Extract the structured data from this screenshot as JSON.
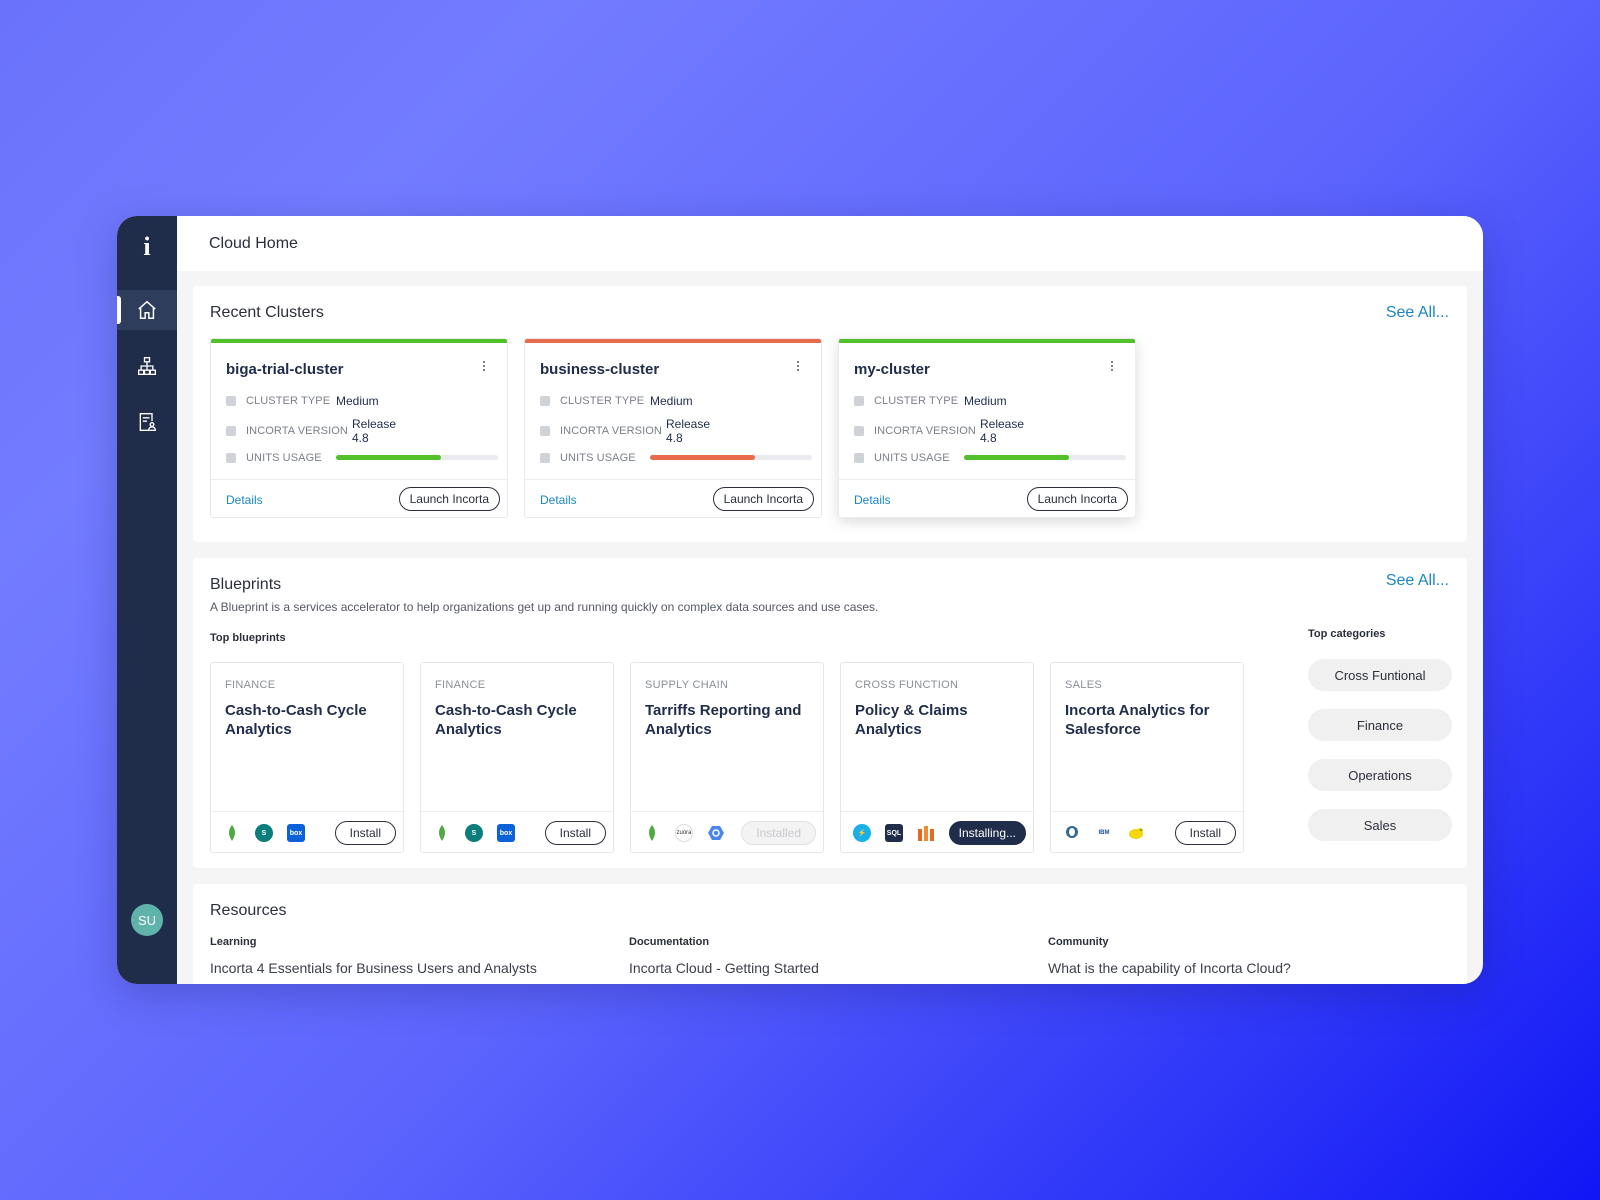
{
  "page": {
    "title": "Cloud Home"
  },
  "sidebar": {
    "logo": "i",
    "nav": [
      {
        "name": "home",
        "icon": "home-icon",
        "active": true
      },
      {
        "name": "hierarchy",
        "icon": "sitemap-icon",
        "active": false
      },
      {
        "name": "report",
        "icon": "report-user-icon",
        "active": false
      }
    ],
    "avatar": "SU"
  },
  "recent_clusters": {
    "title": "Recent Clusters",
    "see_all": "See All...",
    "clusters": [
      {
        "name": "biga-trial-cluster",
        "status_color": "#52c028",
        "type_label": "CLUSTER TYPE",
        "type": "Medium",
        "version_label": "INCORTA VERSION",
        "version": "Release 4.8",
        "usage_label": "UNITS USAGE",
        "usage": 0.65,
        "details": "Details",
        "launch": "Launch Incorta"
      },
      {
        "name": "business-cluster",
        "status_color": "#ea6b4b",
        "type_label": "CLUSTER TYPE",
        "type": "Medium",
        "version_label": "INCORTA VERSION",
        "version": "Release 4.8",
        "usage_label": "UNITS USAGE",
        "usage": 0.65,
        "details": "Details",
        "launch": "Launch Incorta"
      },
      {
        "name": "my-cluster",
        "status_color": "#52c028",
        "type_label": "CLUSTER TYPE",
        "type": "Medium",
        "version_label": "INCORTA VERSION",
        "version": "Release 4.8",
        "usage_label": "UNITS USAGE",
        "usage": 0.65,
        "details": "Details",
        "launch": "Launch Incorta"
      }
    ]
  },
  "blueprints": {
    "title": "Blueprints",
    "see_all": "See All...",
    "description": "A Blueprint is a services accelerator to help organizations get up and running quickly on complex data sources and use cases.",
    "top_label": "Top blueprints",
    "items": [
      {
        "category": "FINANCE",
        "title": "Cash-to-Cash Cycle Analytics",
        "icons": [
          "mongodb-icon",
          "sharepoint-icon",
          "box-icon"
        ],
        "button": "Install",
        "state": "install"
      },
      {
        "category": "FINANCE",
        "title": "Cash-to-Cash Cycle Analytics",
        "icons": [
          "mongodb-icon",
          "sharepoint-icon",
          "box-icon"
        ],
        "button": "Install",
        "state": "install"
      },
      {
        "category": "SUPPLY CHAIN",
        "title": "Tarriffs Reporting and Analytics",
        "icons": [
          "mongodb-icon",
          "zuora-icon",
          "google-bigquery-icon"
        ],
        "button": "Installed",
        "state": "installed"
      },
      {
        "category": "CROSS FUNCTION",
        "title": "Policy & Claims Analytics",
        "icons": [
          "bolt-icon",
          "sql-icon",
          "aws-icon"
        ],
        "button": "Installing...",
        "state": "installing"
      },
      {
        "category": "SALES",
        "title": "Incorta Analytics for Salesforce",
        "icons": [
          "postgresql-icon",
          "ibm-db2-icon",
          "hadoop-icon"
        ],
        "button": "Install",
        "state": "install"
      }
    ],
    "top_categories_label": "Top categories",
    "categories": [
      "Cross Funtional",
      "Finance",
      "Operations",
      "Sales"
    ]
  },
  "resources": {
    "title": "Resources",
    "columns": [
      {
        "heading": "Learning",
        "item": "Incorta 4 Essentials for Business Users and Analysts"
      },
      {
        "heading": "Documentation",
        "item": "Incorta Cloud - Getting Started"
      },
      {
        "heading": "Community",
        "item": "What is the capability of Incorta Cloud?"
      }
    ]
  }
}
